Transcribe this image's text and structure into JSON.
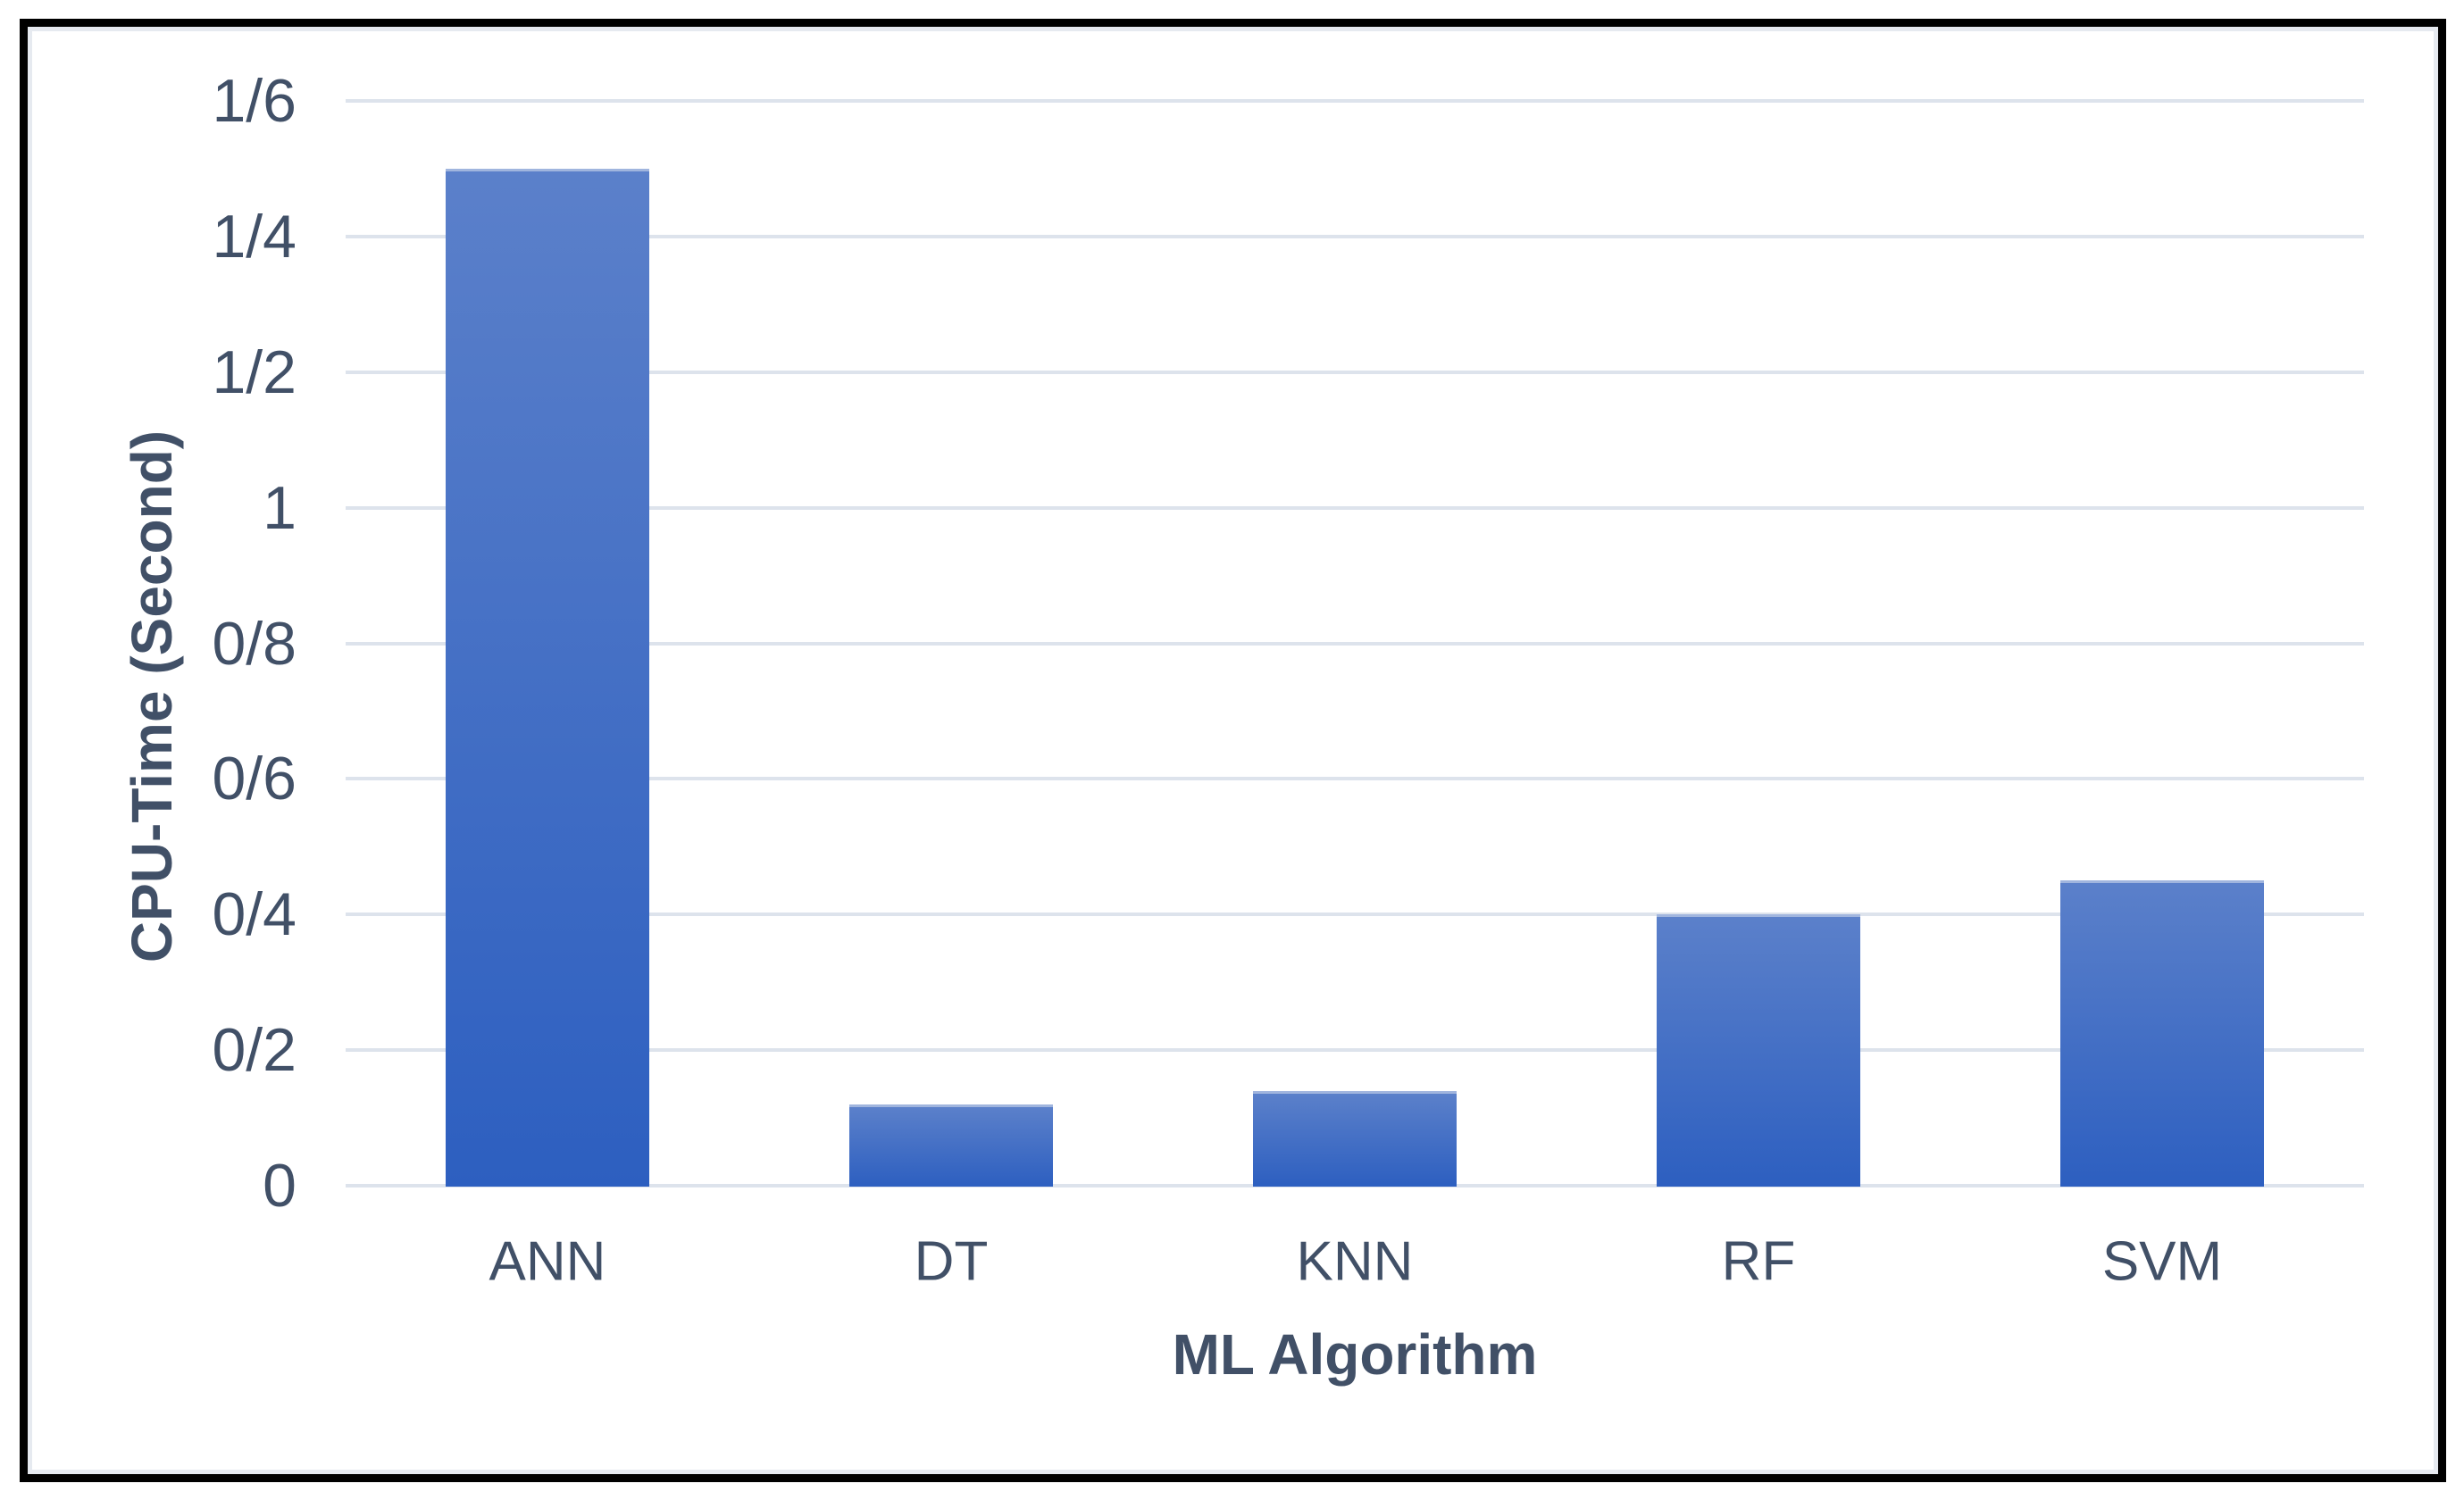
{
  "chart_data": {
    "type": "bar",
    "title": "",
    "xlabel": "ML Algorithm",
    "ylabel": "CPU-Time (Second)",
    "categories": [
      "ANN",
      "DT",
      "KNN",
      "RF",
      "SVM"
    ],
    "values": [
      1.5,
      0.12,
      0.14,
      0.4,
      0.45
    ],
    "ylim": [
      0,
      1.6
    ],
    "ytick_step": 0.2,
    "ytick_labels_bottom_to_top": [
      "0",
      "0/2",
      "0/4",
      "0/6",
      "0/8",
      "1",
      "1/2",
      "1/4",
      "1/6"
    ],
    "decimal_separator_style": "slash (Persian-style decimals, e.g. 1/6 = 1.6)",
    "grid": "horizontal-only",
    "legend": "none",
    "colors": {
      "bar_gradient_top": "#5b80ca",
      "bar_gradient_bottom": "#2d5fc0",
      "bar_top_edge": "#a0b5de",
      "gridline": "#dde3ec",
      "text": "#415067",
      "frame_border": "#000000",
      "frame_inner_line": "#e6eaf0",
      "background": "#ffffff"
    }
  }
}
